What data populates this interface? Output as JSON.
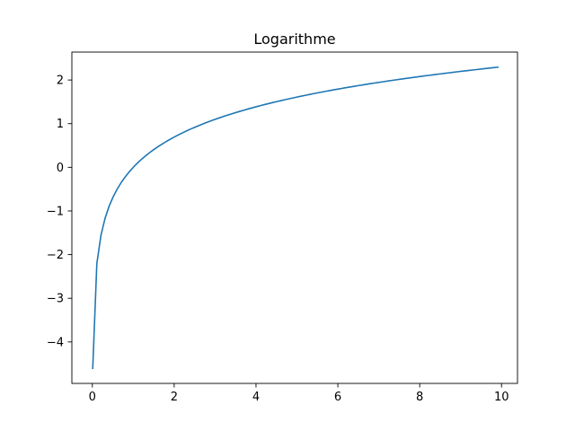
{
  "chart_data": {
    "type": "line",
    "title": "Logarithme",
    "xlabel": "",
    "ylabel": "",
    "xlim": [
      -0.5,
      10.39
    ],
    "ylim": [
      -4.95,
      2.64
    ],
    "xticks": [
      0,
      2,
      4,
      6,
      8,
      10
    ],
    "yticks": [
      -4,
      -3,
      -2,
      -1,
      0,
      1,
      2
    ],
    "xtick_labels": [
      "0",
      "2",
      "4",
      "6",
      "8",
      "10"
    ],
    "ytick_labels": [
      "−4",
      "−3",
      "−2",
      "−1",
      "0",
      "1",
      "2"
    ],
    "grid": false,
    "legend": false,
    "series": [
      {
        "function": "ln(x)",
        "x_start": 0.01,
        "x_end": 9.91,
        "x_step": 0.1,
        "color": "#1f77b4",
        "x": [
          0.01,
          0.11,
          0.21,
          0.31,
          0.51,
          1.01,
          2.01,
          3.01,
          4.01,
          5.01,
          6.01,
          7.01,
          8.01,
          9.01,
          9.91
        ],
        "values": [
          -4.61,
          -2.21,
          -1.56,
          -1.17,
          -0.67,
          0.01,
          0.7,
          1.1,
          1.39,
          1.61,
          1.79,
          1.95,
          2.08,
          2.2,
          2.29
        ]
      }
    ]
  }
}
